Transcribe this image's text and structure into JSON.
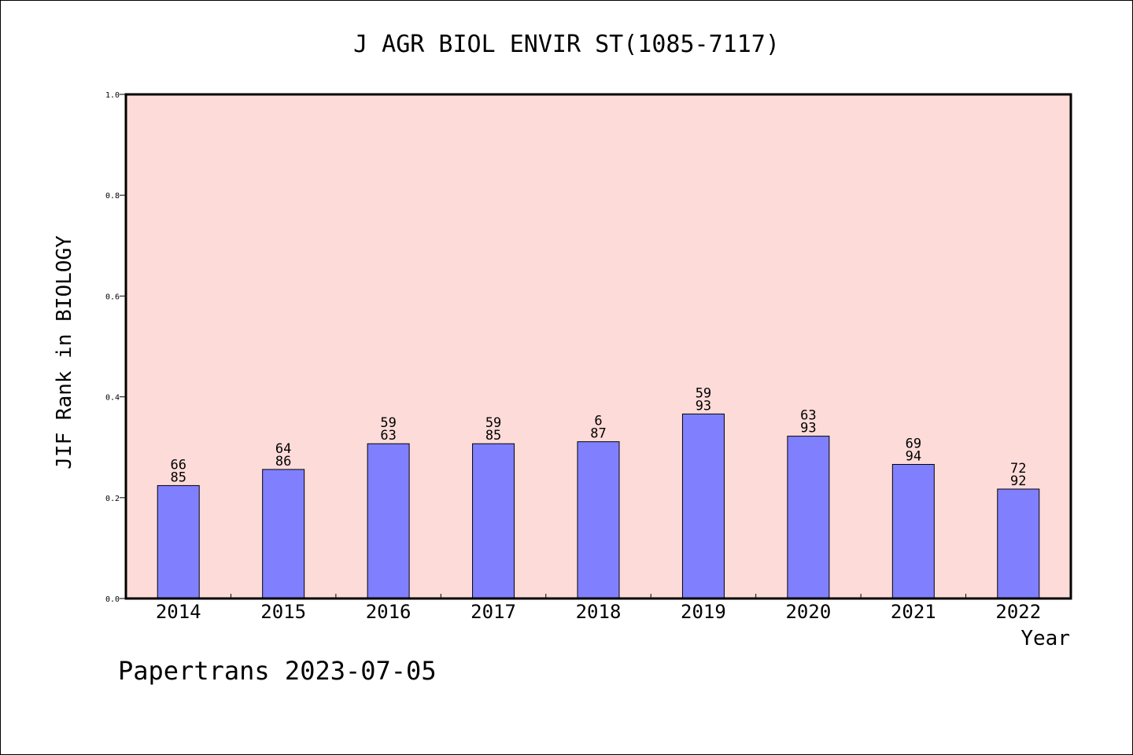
{
  "chart_data": {
    "type": "bar",
    "title": "J AGR BIOL ENVIR ST(1085-7117)",
    "xlabel": "Year",
    "ylabel": "JIF Rank in BIOLOGY",
    "ylim": [
      0,
      1.0
    ],
    "yticks": [
      "0.0",
      "0.2",
      "0.4",
      "0.6",
      "0.8",
      "1.0"
    ],
    "categories": [
      "2014",
      "2015",
      "2016",
      "2017",
      "2018",
      "2019",
      "2020",
      "2021",
      "2022"
    ],
    "values": [
      0.224,
      0.256,
      0.307,
      0.307,
      0.311,
      0.366,
      0.322,
      0.266,
      0.217
    ],
    "rank_labels": [
      [
        "66",
        "85"
      ],
      [
        "64",
        "86"
      ],
      [
        "59",
        "63"
      ],
      [
        "59",
        "85"
      ],
      [
        "6",
        "87"
      ],
      [
        "59",
        "93"
      ],
      [
        "63",
        "93"
      ],
      [
        "69",
        "94"
      ],
      [
        "72",
        "92"
      ]
    ],
    "grid": false,
    "colors": {
      "plot_background": "#fddbd8",
      "bar_fill": "#8080ff",
      "bar_edge": "#000000"
    }
  },
  "footer": {
    "text": "Papertrans 2023-07-05"
  }
}
